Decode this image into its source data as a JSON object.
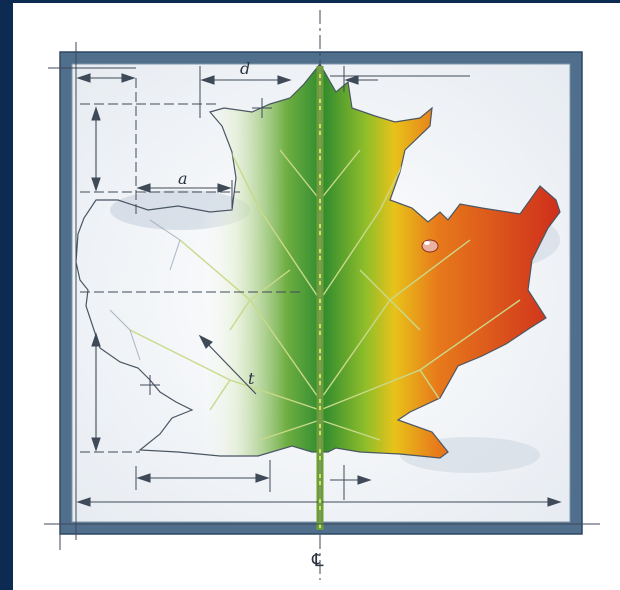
{
  "illustration": {
    "subject": "maple-leaf-blueprint",
    "colors": {
      "frame": "#4f6f8c",
      "frame_dark": "#2c4763",
      "edge": "#0d2a52",
      "leaf_green": "#2f8a2f",
      "leaf_yellow": "#e8c21a",
      "leaf_orange": "#e77a1b",
      "leaf_red": "#cf2e1c",
      "ink": "#3f4a58"
    }
  },
  "labels": {
    "d": "d",
    "a": "a",
    "t": "t",
    "centerline": "℄"
  }
}
